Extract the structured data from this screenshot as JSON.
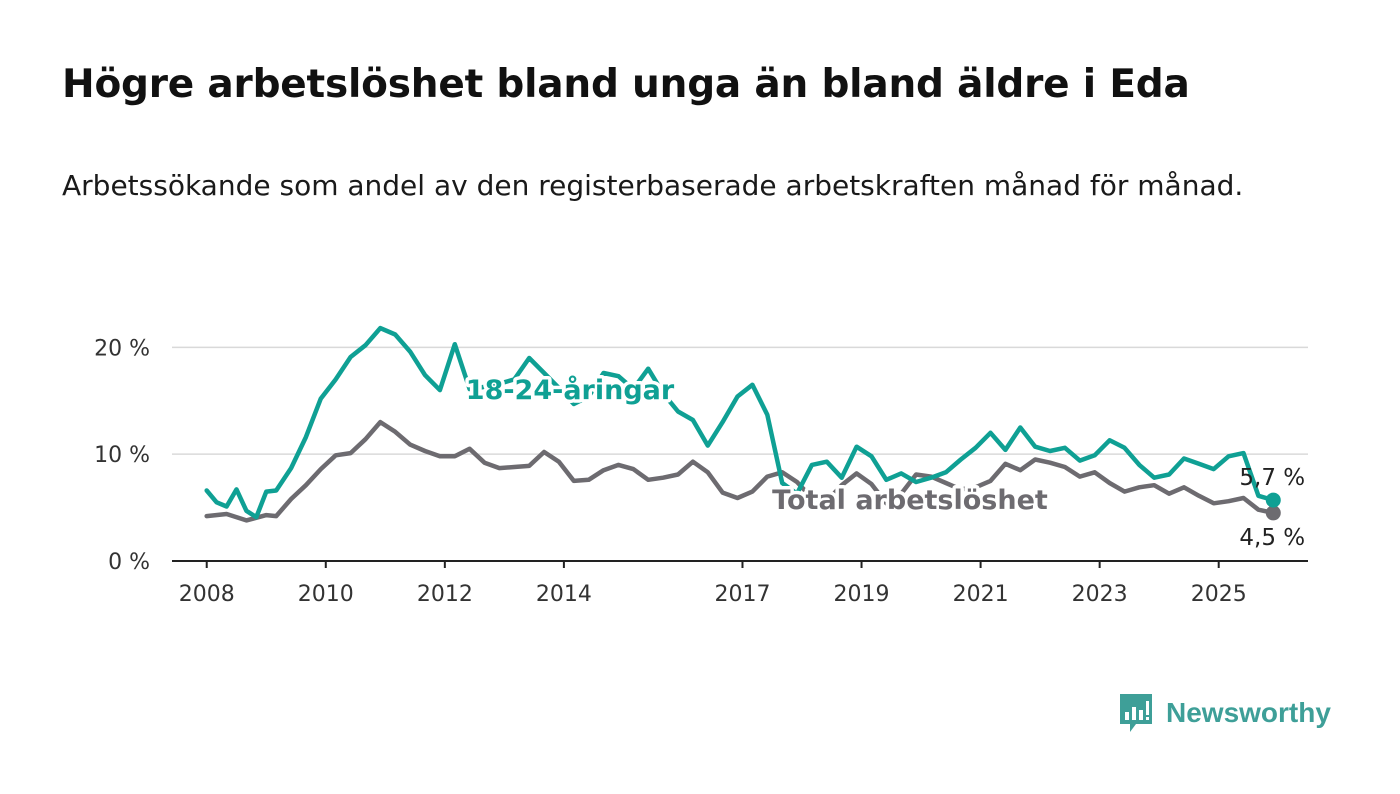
{
  "header": {
    "title": "Högre arbetslöshet bland unga än bland äldre i Eda",
    "subtitle": "Arbetssökande som andel av den registerbaserade arbetskraften månad för månad."
  },
  "brand": {
    "name": "Newsworthy",
    "icon": "newsworthy-logo-icon",
    "color": "#3e9f98"
  },
  "chart_data": {
    "type": "line",
    "x_ticks": [
      "2008",
      "2010",
      "2012",
      "2014",
      "2017",
      "2019",
      "2021",
      "2023",
      "2025"
    ],
    "y_ticks": [
      "0 %",
      "10 %",
      "20 %"
    ],
    "ylim": [
      0,
      22
    ],
    "xlim": [
      "2007-06",
      "2026-07"
    ],
    "grid": "horizontal",
    "series": [
      {
        "name": "Total arbetslöshet",
        "color": "#6d6b70",
        "end_label": "4,5 %",
        "points": [
          [
            "2008-01",
            4.2
          ],
          [
            "2008-05",
            4.4
          ],
          [
            "2008-09",
            3.8
          ],
          [
            "2009-01",
            4.3
          ],
          [
            "2009-03",
            4.2
          ],
          [
            "2009-06",
            5.8
          ],
          [
            "2009-09",
            7.1
          ],
          [
            "2009-12",
            8.6
          ],
          [
            "2010-03",
            9.9
          ],
          [
            "2010-06",
            10.1
          ],
          [
            "2010-09",
            11.4
          ],
          [
            "2010-12",
            13.0
          ],
          [
            "2011-03",
            12.1
          ],
          [
            "2011-06",
            10.9
          ],
          [
            "2011-09",
            10.3
          ],
          [
            "2011-12",
            9.8
          ],
          [
            "2012-03",
            9.8
          ],
          [
            "2012-06",
            10.5
          ],
          [
            "2012-09",
            9.2
          ],
          [
            "2012-12",
            8.7
          ],
          [
            "2013-03",
            8.8
          ],
          [
            "2013-06",
            8.9
          ],
          [
            "2013-09",
            10.2
          ],
          [
            "2013-12",
            9.3
          ],
          [
            "2014-03",
            7.5
          ],
          [
            "2014-06",
            7.6
          ],
          [
            "2014-09",
            8.5
          ],
          [
            "2014-12",
            9.0
          ],
          [
            "2015-03",
            8.6
          ],
          [
            "2015-06",
            7.6
          ],
          [
            "2015-09",
            7.8
          ],
          [
            "2015-12",
            8.1
          ],
          [
            "2016-03",
            9.3
          ],
          [
            "2016-06",
            8.3
          ],
          [
            "2016-09",
            6.4
          ],
          [
            "2016-12",
            5.9
          ],
          [
            "2017-03",
            6.5
          ],
          [
            "2017-06",
            7.9
          ],
          [
            "2017-09",
            8.3
          ],
          [
            "2017-12",
            7.4
          ],
          [
            "2018-03",
            5.9
          ],
          [
            "2018-06",
            5.6
          ],
          [
            "2018-09",
            7.1
          ],
          [
            "2018-12",
            8.2
          ],
          [
            "2019-03",
            7.2
          ],
          [
            "2019-06",
            5.4
          ],
          [
            "2019-09",
            6.3
          ],
          [
            "2019-12",
            8.1
          ],
          [
            "2020-03",
            7.9
          ],
          [
            "2020-06",
            7.3
          ],
          [
            "2020-09",
            6.7
          ],
          [
            "2020-12",
            6.9
          ],
          [
            "2021-03",
            7.5
          ],
          [
            "2021-06",
            9.1
          ],
          [
            "2021-09",
            8.5
          ],
          [
            "2021-12",
            9.5
          ],
          [
            "2022-03",
            9.2
          ],
          [
            "2022-06",
            8.8
          ],
          [
            "2022-09",
            7.9
          ],
          [
            "2022-12",
            8.3
          ],
          [
            "2023-03",
            7.3
          ],
          [
            "2023-06",
            6.5
          ],
          [
            "2023-09",
            6.9
          ],
          [
            "2023-12",
            7.1
          ],
          [
            "2024-03",
            6.3
          ],
          [
            "2024-06",
            6.9
          ],
          [
            "2024-09",
            6.1
          ],
          [
            "2024-12",
            5.4
          ],
          [
            "2025-03",
            5.6
          ],
          [
            "2025-06",
            5.9
          ],
          [
            "2025-09",
            4.8
          ],
          [
            "2025-12",
            4.5
          ]
        ]
      },
      {
        "name": "18-24-åringar",
        "color": "#0fa094",
        "end_label": "5,7 %",
        "points": [
          [
            "2008-01",
            6.6
          ],
          [
            "2008-03",
            5.5
          ],
          [
            "2008-05",
            5.1
          ],
          [
            "2008-07",
            6.7
          ],
          [
            "2008-09",
            4.7
          ],
          [
            "2008-11",
            4.1
          ],
          [
            "2009-01",
            6.5
          ],
          [
            "2009-03",
            6.6
          ],
          [
            "2009-06",
            8.7
          ],
          [
            "2009-09",
            11.6
          ],
          [
            "2009-12",
            15.2
          ],
          [
            "2010-03",
            17.0
          ],
          [
            "2010-06",
            19.1
          ],
          [
            "2010-09",
            20.2
          ],
          [
            "2010-12",
            21.8
          ],
          [
            "2011-03",
            21.2
          ],
          [
            "2011-06",
            19.6
          ],
          [
            "2011-09",
            17.4
          ],
          [
            "2011-12",
            16.0
          ],
          [
            "2012-03",
            20.3
          ],
          [
            "2012-06",
            16.1
          ],
          [
            "2012-09",
            16.3
          ],
          [
            "2012-12",
            16.6
          ],
          [
            "2013-03",
            17.0
          ],
          [
            "2013-06",
            19.0
          ],
          [
            "2013-09",
            17.6
          ],
          [
            "2013-12",
            16.2
          ],
          [
            "2014-03",
            14.7
          ],
          [
            "2014-06",
            15.4
          ],
          [
            "2014-09",
            17.6
          ],
          [
            "2014-12",
            17.3
          ],
          [
            "2015-03",
            16.1
          ],
          [
            "2015-06",
            18.0
          ],
          [
            "2015-09",
            15.7
          ],
          [
            "2015-12",
            14.0
          ],
          [
            "2016-03",
            13.2
          ],
          [
            "2016-06",
            10.8
          ],
          [
            "2016-09",
            13.0
          ],
          [
            "2016-12",
            15.4
          ],
          [
            "2017-03",
            16.5
          ],
          [
            "2017-06",
            13.7
          ],
          [
            "2017-09",
            7.3
          ],
          [
            "2017-12",
            6.3
          ],
          [
            "2018-03",
            9.0
          ],
          [
            "2018-06",
            9.3
          ],
          [
            "2018-09",
            7.8
          ],
          [
            "2018-12",
            10.7
          ],
          [
            "2019-03",
            9.8
          ],
          [
            "2019-06",
            7.6
          ],
          [
            "2019-09",
            8.2
          ],
          [
            "2019-12",
            7.4
          ],
          [
            "2020-03",
            7.8
          ],
          [
            "2020-06",
            8.3
          ],
          [
            "2020-09",
            9.5
          ],
          [
            "2020-12",
            10.6
          ],
          [
            "2021-03",
            12.0
          ],
          [
            "2021-06",
            10.4
          ],
          [
            "2021-09",
            12.5
          ],
          [
            "2021-12",
            10.7
          ],
          [
            "2022-03",
            10.3
          ],
          [
            "2022-06",
            10.6
          ],
          [
            "2022-09",
            9.4
          ],
          [
            "2022-12",
            9.9
          ],
          [
            "2023-03",
            11.3
          ],
          [
            "2023-06",
            10.6
          ],
          [
            "2023-09",
            9.0
          ],
          [
            "2023-12",
            7.8
          ],
          [
            "2024-03",
            8.1
          ],
          [
            "2024-06",
            9.6
          ],
          [
            "2024-09",
            9.1
          ],
          [
            "2024-12",
            8.6
          ],
          [
            "2025-03",
            9.8
          ],
          [
            "2025-06",
            10.1
          ],
          [
            "2025-09",
            6.1
          ],
          [
            "2025-12",
            5.7
          ]
        ]
      }
    ]
  }
}
